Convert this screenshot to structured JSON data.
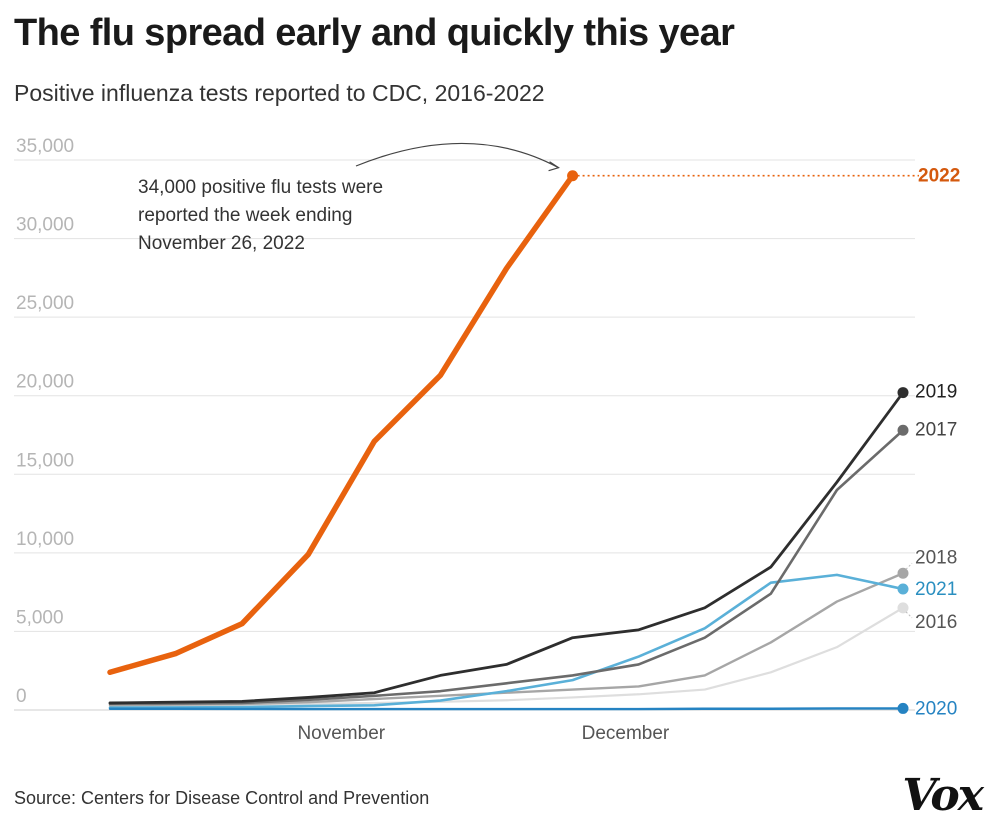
{
  "header": {
    "title": "The flu spread early and quickly this year",
    "subtitle": "Positive influenza tests reported to CDC, 2016-2022"
  },
  "footer": {
    "source": "Source: Centers for Disease Control and Prevention",
    "logo": "Vox"
  },
  "chart_data": {
    "type": "line",
    "title": "The flu spread early and quickly this year",
    "subtitle": "Positive influenza tests reported to CDC, 2016-2022",
    "xlabel": "",
    "ylabel": "",
    "ylim": [
      0,
      35000
    ],
    "y_ticks": [
      {
        "value": 0,
        "label": "0"
      },
      {
        "value": 5000,
        "label": "5,000"
      },
      {
        "value": 10000,
        "label": "10,000"
      },
      {
        "value": 15000,
        "label": "15,000"
      },
      {
        "value": 20000,
        "label": "20,000"
      },
      {
        "value": 25000,
        "label": "25,000"
      },
      {
        "value": 30000,
        "label": "30,000"
      },
      {
        "value": 35000,
        "label": "35,000"
      }
    ],
    "weeks": [
      1,
      2,
      3,
      4,
      5,
      6,
      7,
      8,
      9,
      10,
      11,
      12,
      13
    ],
    "x_ticks": [
      {
        "week": 4.5,
        "label": "November"
      },
      {
        "week": 8.8,
        "label": "December"
      }
    ],
    "grid": true,
    "series": [
      {
        "name": "2016",
        "color": "#dedede",
        "width": 2.2,
        "values": [
          250,
          280,
          300,
          380,
          450,
          520,
          620,
          800,
          1000,
          1300,
          2400,
          4000,
          6500
        ],
        "label_color": "#555555"
      },
      {
        "name": "2018",
        "color": "#a6a6a6",
        "width": 2.4,
        "values": [
          300,
          350,
          380,
          500,
          700,
          900,
          1100,
          1300,
          1500,
          2200,
          4300,
          6900,
          8700
        ],
        "label_color": "#555555"
      },
      {
        "name": "2021",
        "color": "#5ab0d8",
        "width": 2.6,
        "values": [
          150,
          160,
          180,
          250,
          300,
          600,
          1200,
          1900,
          3400,
          5200,
          8100,
          8600,
          7700
        ],
        "label_color": "#2a8fc0"
      },
      {
        "name": "2017",
        "color": "#6b6b6b",
        "width": 2.6,
        "values": [
          400,
          420,
          450,
          650,
          900,
          1200,
          1700,
          2200,
          2900,
          4600,
          7400,
          14000,
          17800
        ],
        "label_color": "#444444"
      },
      {
        "name": "2019",
        "color": "#2e2e2e",
        "width": 2.8,
        "values": [
          450,
          500,
          550,
          800,
          1100,
          2200,
          2900,
          4600,
          5100,
          6500,
          9100,
          14500,
          20200
        ],
        "label_color": "#222222"
      },
      {
        "name": "2020",
        "color": "#2583c2",
        "width": 2.4,
        "values": [
          80,
          80,
          70,
          60,
          60,
          60,
          60,
          60,
          60,
          80,
          80,
          100,
          100
        ],
        "label_color": "#2583c2"
      },
      {
        "name": "2022",
        "color": "#e8620e",
        "width": 5.5,
        "values": [
          2400,
          3600,
          5500,
          9900,
          17100,
          21300,
          28100,
          34000
        ],
        "label_color": "#d4590e",
        "label_bold": true
      }
    ],
    "annotation": {
      "lines": [
        "34,000 positive flu tests were",
        "reported the week ending",
        "November 26, 2022"
      ],
      "target_series": "2022",
      "target_week": 8,
      "target_value": 34000
    }
  }
}
